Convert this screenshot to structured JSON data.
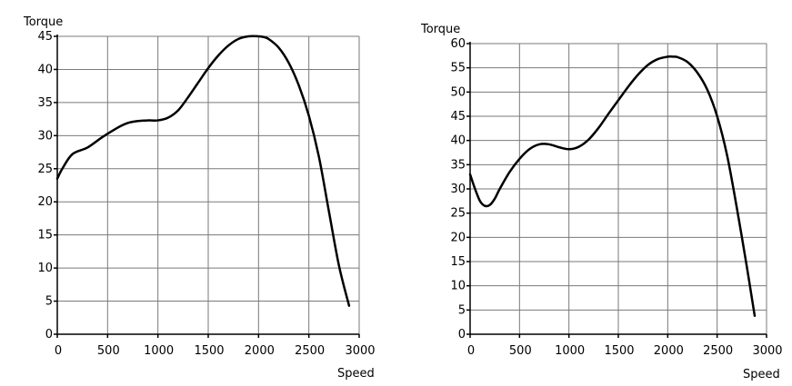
{
  "chart_data": [
    {
      "type": "line",
      "title": "",
      "xlabel": "Speed",
      "ylabel": "Torque",
      "xlim": [
        0,
        3000
      ],
      "ylim": [
        0,
        45
      ],
      "x_ticks": [
        0,
        500,
        1000,
        1500,
        2000,
        2500,
        3000
      ],
      "y_ticks": [
        0,
        5,
        10,
        15,
        20,
        25,
        30,
        35,
        40,
        45
      ],
      "grid": true,
      "series": [
        {
          "color": "#000000",
          "x": [
            0,
            50,
            150,
            300,
            450,
            600,
            700,
            800,
            900,
            1000,
            1100,
            1200,
            1300,
            1400,
            1500,
            1600,
            1700,
            1800,
            1900,
            2000,
            2050,
            2100,
            2200,
            2300,
            2400,
            2500,
            2600,
            2700,
            2800,
            2900
          ],
          "y": [
            23.5,
            25,
            27.2,
            28.2,
            29.8,
            31.2,
            31.9,
            32.2,
            32.3,
            32.3,
            32.7,
            33.8,
            35.8,
            38.0,
            40.2,
            42.1,
            43.6,
            44.6,
            45.0,
            45.0,
            44.9,
            44.6,
            43.3,
            41.0,
            37.6,
            33.0,
            26.8,
            18.5,
            10.3,
            4.3
          ]
        }
      ]
    },
    {
      "type": "line",
      "title": "",
      "xlabel": "Speed",
      "ylabel": "Torque",
      "xlim": [
        0,
        3000
      ],
      "ylim": [
        0,
        60
      ],
      "x_ticks": [
        0,
        500,
        1000,
        1500,
        2000,
        2500,
        3000
      ],
      "y_ticks": [
        0,
        5,
        10,
        15,
        20,
        25,
        30,
        35,
        40,
        45,
        50,
        55,
        60
      ],
      "grid": true,
      "series": [
        {
          "color": "#000000",
          "x": [
            0,
            50,
            100,
            150,
            200,
            250,
            300,
            400,
            500,
            600,
            700,
            800,
            900,
            1000,
            1100,
            1200,
            1300,
            1400,
            1500,
            1600,
            1700,
            1800,
            1900,
            2000,
            2050,
            2100,
            2200,
            2300,
            2400,
            2500,
            2600,
            2700,
            2800,
            2880
          ],
          "y": [
            33,
            30,
            27.5,
            26.5,
            26.7,
            28,
            30,
            33.5,
            36.2,
            38.2,
            39.2,
            39.2,
            38.6,
            38.2,
            38.7,
            40.2,
            42.6,
            45.5,
            48.3,
            51.1,
            53.6,
            55.6,
            56.8,
            57.3,
            57.3,
            57.2,
            56.2,
            54.0,
            50.5,
            45.0,
            37.0,
            26.0,
            14.0,
            3.8
          ]
        }
      ]
    }
  ]
}
